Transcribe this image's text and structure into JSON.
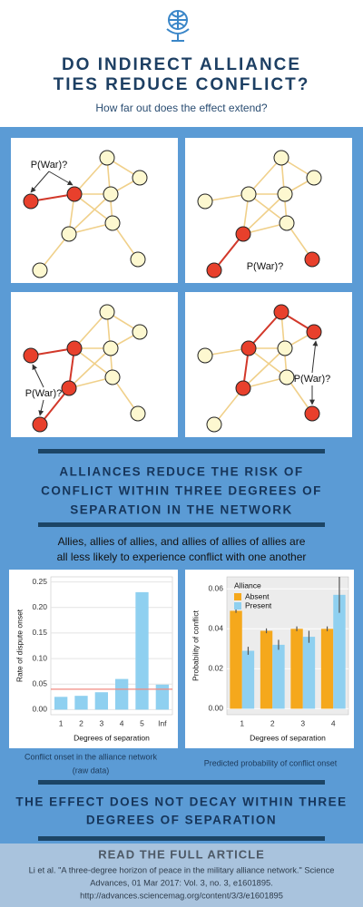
{
  "header": {
    "title_lines": [
      "DO INDIRECT ALLIANCE",
      "TIES REDUCE CONFLICT?"
    ],
    "subtitle": "How far out does the effect extend?"
  },
  "panels": [
    {
      "label": "P(War)?"
    },
    {
      "label": "P(War)?"
    },
    {
      "label": "P(War)?"
    },
    {
      "label": "P(War)?"
    }
  ],
  "finding": {
    "lines": [
      "ALLIANCES REDUCE THE RISK OF",
      "CONFLICT WITHIN THREE DEGREES OF",
      "SEPARATION IN THE NETWORK"
    ]
  },
  "explanation": {
    "lines": [
      "Allies, allies of allies, and allies of allies of allies are",
      "all less likely to  experience conflict with one another"
    ]
  },
  "chart_data": [
    {
      "type": "bar",
      "ylabel": "Rate of dispute onset",
      "xlabel": "Degrees of separation",
      "categories": [
        "1",
        "2",
        "3",
        "4",
        "5",
        "Inf"
      ],
      "values": [
        0.025,
        0.027,
        0.034,
        0.06,
        0.23,
        0.049
      ],
      "color": "#8fd0f0",
      "reference_line": 0.04,
      "reference_color": "#f08a80",
      "ylim": [
        -0.01,
        0.26
      ],
      "yticks": [
        {
          "value": 0,
          "label": "0.00"
        },
        {
          "value": 0.05,
          "label": "0.05"
        },
        {
          "value": 0.1,
          "label": "0.10"
        },
        {
          "value": 0.15,
          "label": "0.15"
        },
        {
          "value": 0.2,
          "label": "0.20"
        },
        {
          "value": 0.25,
          "label": "0.25"
        }
      ],
      "grid": true,
      "caption_lines": [
        "Conflict onset in the alliance network",
        "(raw data)"
      ]
    },
    {
      "type": "grouped_bar",
      "ylabel": "Probability of conflict",
      "xlabel": "Degrees of separation",
      "legend_title": "Alliance",
      "categories": [
        "1",
        "2",
        "3",
        "4"
      ],
      "series": [
        {
          "name": "Absent",
          "color": "#f5a81c",
          "values": [
            0.049,
            0.039,
            0.04,
            0.04
          ],
          "errors": [
            0.001,
            0.0012,
            0.0012,
            0.0012
          ]
        },
        {
          "name": "Present",
          "color": "#8fd0f0",
          "values": [
            0.029,
            0.032,
            0.036,
            0.057
          ],
          "errors": [
            0.002,
            0.0025,
            0.003,
            0.009
          ]
        }
      ],
      "ylim": [
        -0.003,
        0.066
      ],
      "yticks": [
        {
          "value": 0,
          "label": "0.00"
        },
        {
          "value": 0.02,
          "label": "0.02"
        },
        {
          "value": 0.04,
          "label": "0.04"
        },
        {
          "value": 0.06,
          "label": "0.06"
        }
      ],
      "grid": true,
      "caption_lines": [
        "Predicted probability of conflict onset"
      ]
    }
  ],
  "conclusion": {
    "lines": [
      "THE EFFECT DOES NOT DECAY WITHIN THREE",
      "DEGREES OF SEPARATION"
    ]
  },
  "footer": {
    "heading": "READ THE FULL ARTICLE",
    "citation_lines": [
      "Li et al. \"A three-degree horizon of peace in the military alliance network.\" Science",
      "Advances, 01 Mar 2017: Vol. 3, no. 3, e1601895.",
      "http://advances.sciencemag.org/content/3/3/e1601895"
    ]
  }
}
